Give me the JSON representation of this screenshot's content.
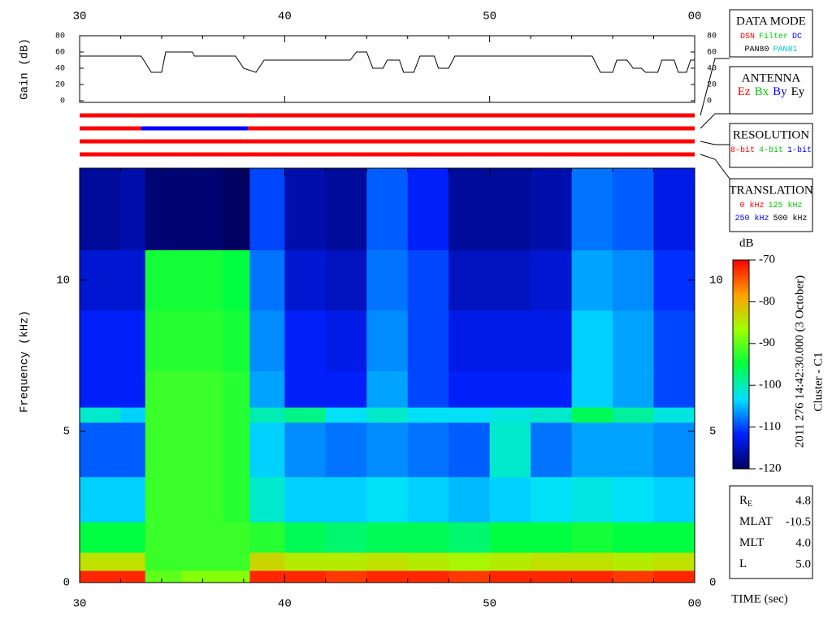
{
  "chart_data": {
    "type": "heatmap",
    "x_axis_label": "TIME (sec)",
    "y_axis_label": "Frequency (kHz)",
    "xlim": [
      30,
      60
    ],
    "xticks": [
      30,
      40,
      50,
      {
        "value": 60,
        "label": "00"
      }
    ],
    "xminor": [
      32,
      34,
      36,
      38,
      42,
      44,
      46,
      48,
      52,
      54,
      56,
      58
    ],
    "ylim": [
      0,
      13.7
    ],
    "yticks": [
      0,
      5,
      10
    ],
    "x_bins": [
      30,
      32,
      33.2,
      35,
      37,
      38.3,
      40,
      42,
      44,
      46,
      48,
      50,
      52,
      54,
      56,
      58,
      60
    ],
    "y_bins": [
      0,
      0.4,
      1,
      2,
      3.5,
      5.3,
      5.8,
      7,
      9,
      11,
      13.7
    ],
    "values": [
      [
        -72,
        -72,
        -90,
        -88,
        -88,
        -72,
        -72,
        -73,
        -72,
        -72,
        -73,
        -72,
        -72,
        -72,
        -73,
        -72
      ],
      [
        -84,
        -84,
        -92,
        -92,
        -92,
        -83,
        -85,
        -85,
        -84,
        -85,
        -86,
        -85,
        -84,
        -84,
        -85,
        -84
      ],
      [
        -95,
        -95,
        -92,
        -92,
        -92,
        -93,
        -96,
        -97,
        -96,
        -96,
        -97,
        -95,
        -95,
        -94,
        -95,
        -95
      ],
      [
        -104,
        -104,
        -92,
        -92,
        -93,
        -101,
        -104,
        -104,
        -103,
        -104,
        -105,
        -104,
        -103,
        -102,
        -103,
        -104
      ],
      [
        -109,
        -109,
        -92,
        -92,
        -93,
        -104,
        -107,
        -108,
        -107,
        -108,
        -109,
        -101,
        -108,
        -106,
        -106,
        -107
      ],
      [
        -101,
        -104,
        -92,
        -92,
        -93,
        -100,
        -98,
        -103,
        -101,
        -103,
        -103,
        -102,
        -101,
        -96,
        -99,
        -102
      ],
      [
        -112,
        -112,
        -92,
        -92,
        -93,
        -106,
        -112,
        -112,
        -106,
        -110,
        -112,
        -112,
        -112,
        -104,
        -106,
        -110
      ],
      [
        -112,
        -112,
        -93,
        -93,
        -94,
        -107,
        -112,
        -113,
        -107,
        -110,
        -113,
        -113,
        -113,
        -104,
        -106,
        -110
      ],
      [
        -114,
        -114,
        -94,
        -94,
        -95,
        -108,
        -114,
        -115,
        -108,
        -110,
        -115,
        -115,
        -114,
        -106,
        -107,
        -111
      ],
      [
        -117,
        -116,
        -119,
        -119,
        -120,
        -110,
        -116,
        -117,
        -109,
        -112,
        -117,
        -117,
        -116,
        -108,
        -109,
        -113
      ]
    ],
    "colorbar": {
      "label": "dB",
      "lim": [
        -120,
        -70
      ],
      "ticks": [
        -70,
        -80,
        -90,
        -100,
        -110,
        -120
      ],
      "colormap": [
        "#000060",
        "#0020ff",
        "#00e0ff",
        "#00ff40",
        "#a0ff00",
        "#ffa000",
        "#ff0000"
      ]
    },
    "side_label": "2011 276 14:42:30.000 (3 October)",
    "side_label_2": "Cluster - C1",
    "gain": {
      "y_axis_label": "Gain (dB)",
      "ylim": [
        0,
        80
      ],
      "yticks": [
        0,
        20,
        40,
        60,
        80
      ],
      "color": "#000000",
      "x": [
        30,
        33,
        33.5,
        34,
        34.2,
        35.5,
        35.6,
        37.6,
        38,
        38.6,
        39,
        43.2,
        43.5,
        44,
        44.3,
        44.8,
        45,
        45.6,
        45.8,
        46.3,
        46.6,
        47.3,
        47.5,
        48,
        48.3,
        55,
        55.4,
        56,
        56.2,
        56.7,
        57,
        57.4,
        57.6,
        58.2,
        58.4,
        59,
        59.2,
        59.6,
        59.8,
        60
      ],
      "values": [
        55,
        55,
        35,
        35,
        60,
        60,
        55,
        55,
        40,
        35,
        50,
        50,
        60,
        60,
        40,
        40,
        50,
        50,
        35,
        35,
        55,
        55,
        40,
        40,
        55,
        55,
        35,
        35,
        50,
        50,
        40,
        40,
        35,
        35,
        50,
        50,
        35,
        35,
        50,
        50
      ]
    },
    "status_bars": [
      [
        {
          "start": 30,
          "end": 60,
          "color": "#ff0000"
        }
      ],
      [
        {
          "start": 30,
          "end": 33,
          "color": "#ff0000"
        },
        {
          "start": 33,
          "end": 38.2,
          "color": "#0000ff"
        },
        {
          "start": 38.2,
          "end": 60,
          "color": "#ff0000"
        }
      ],
      [
        {
          "start": 30,
          "end": 60,
          "color": "#ff0000"
        }
      ],
      [
        {
          "start": 30,
          "end": 60,
          "color": "#ff0000"
        }
      ]
    ]
  },
  "panels": [
    {
      "title": "DATA MODE",
      "lines": [
        [
          {
            "text": "DSN",
            "color": "#ff0000"
          },
          {
            "text": "Filter",
            "color": "#00cc00"
          },
          {
            "text": "DC",
            "color": "#0000ff"
          }
        ],
        [
          {
            "text": "PAN80",
            "color": "#000000"
          },
          {
            "text": "PAN81",
            "color": "#00cccc"
          }
        ]
      ]
    },
    {
      "title": "ANTENNA",
      "lines": [
        [
          {
            "text": "Ez",
            "color": "#ff0000"
          },
          {
            "text": "Bx",
            "color": "#00cc00"
          },
          {
            "text": "By",
            "color": "#0000ff"
          },
          {
            "text": "Ey",
            "color": "#000000"
          }
        ]
      ]
    },
    {
      "title": "RESOLUTION",
      "lines": [
        [
          {
            "text": "8-bit",
            "color": "#ff0000"
          },
          {
            "text": "4-bit",
            "color": "#00cc00"
          },
          {
            "text": "1-bit",
            "color": "#0000ff"
          }
        ]
      ]
    },
    {
      "title": "TRANSLATION",
      "lines": [
        [
          {
            "text": "0 kHz",
            "color": "#ff0000"
          },
          {
            "text": "125 kHz",
            "color": "#00cc00"
          }
        ],
        [
          {
            "text": "250 kHz",
            "color": "#0000ff"
          },
          {
            "text": "500 kHz",
            "color": "#000000"
          }
        ]
      ]
    }
  ],
  "info": [
    {
      "label": "R",
      "sub": "E",
      "value": "4.8"
    },
    {
      "label": "MLAT",
      "value": "-10.5"
    },
    {
      "label": "MLT",
      "value": "4.0"
    },
    {
      "label": "L",
      "value": "5.0"
    }
  ]
}
